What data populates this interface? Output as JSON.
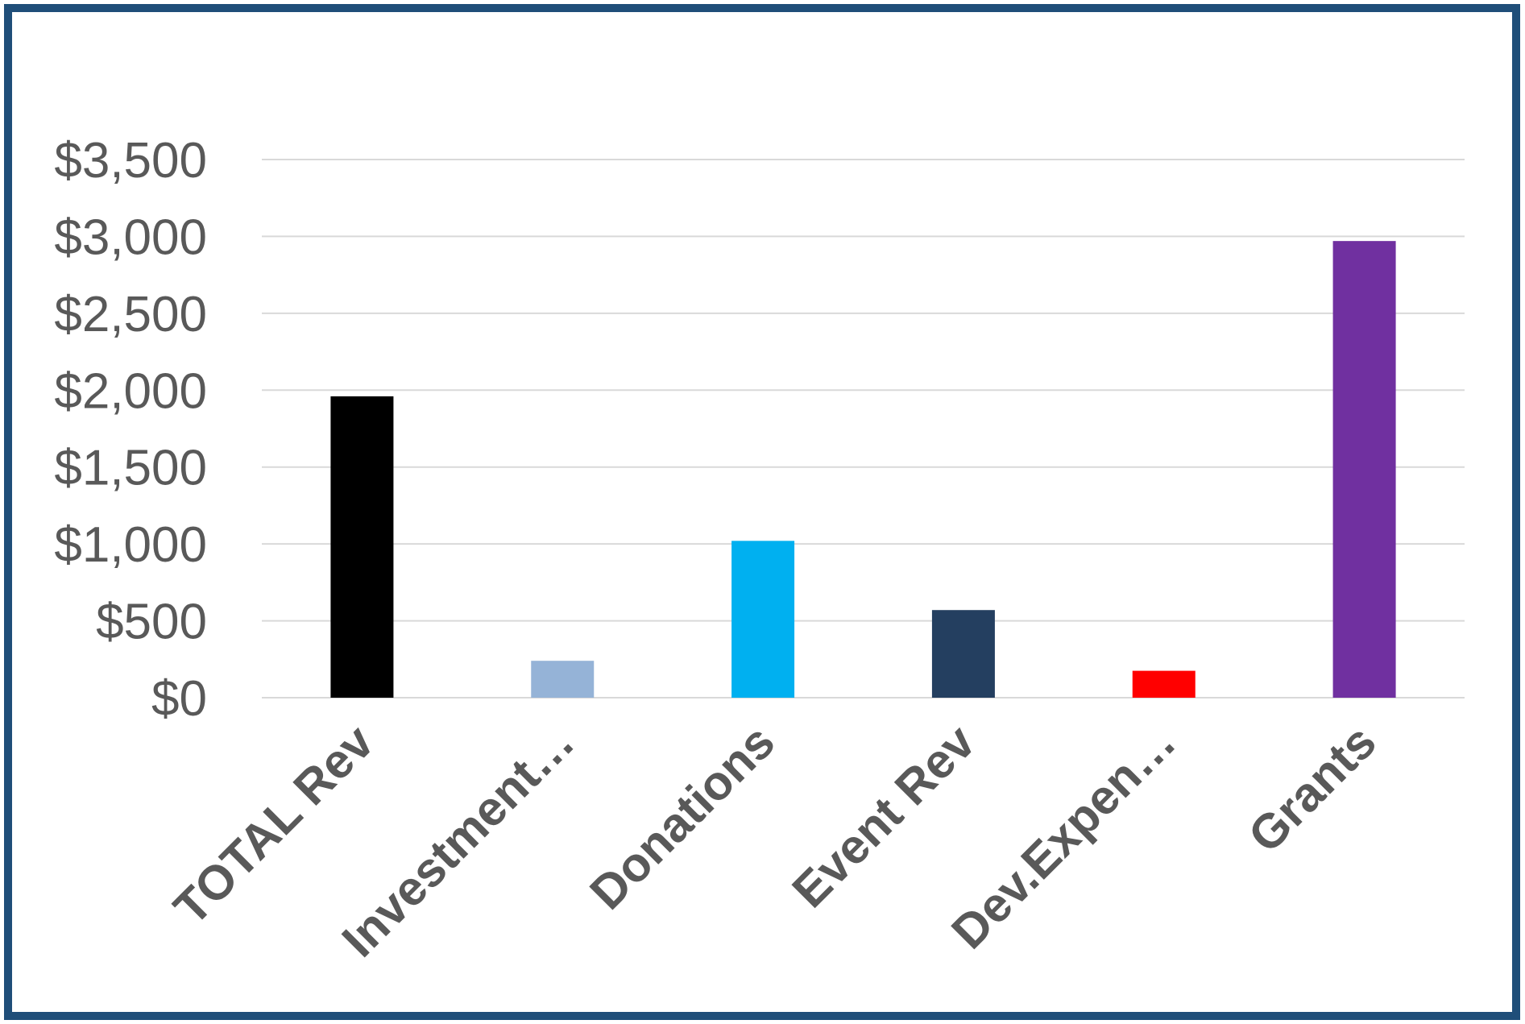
{
  "chart_data": {
    "type": "bar",
    "title": "",
    "xlabel": "",
    "ylabel": "",
    "categories": [
      "TOTAL Rev",
      "Investment…",
      "Donations",
      "Event Rev",
      "Dev.Expen…",
      "Grants"
    ],
    "values": [
      1960,
      240,
      1020,
      570,
      175,
      2970
    ],
    "colors": [
      "#000000",
      "#95b3d7",
      "#00b0f0",
      "#243f60",
      "#ff0000",
      "#7030a0"
    ],
    "ylim": [
      0,
      3500
    ],
    "yticks": [
      0,
      500,
      1000,
      1500,
      2000,
      2500,
      3000,
      3500
    ],
    "ytick_labels": [
      "$0",
      "$500",
      "$1,000",
      "$1,500",
      "$2,000",
      "$2,500",
      "$3,000",
      "$3,500"
    ],
    "grid": true,
    "legend": "none",
    "frame_color": "#1f4e79"
  }
}
